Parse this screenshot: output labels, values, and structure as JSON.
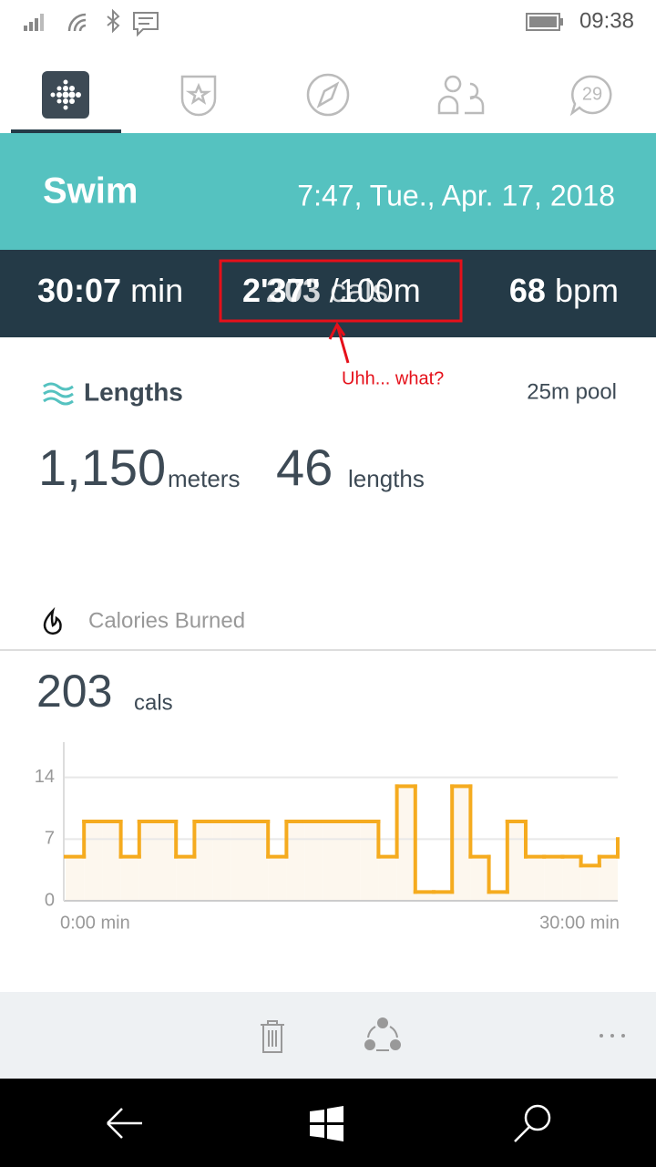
{
  "status_bar": {
    "time": "09:38"
  },
  "tabs": {
    "messages_badge": "29"
  },
  "header": {
    "title": "Swim",
    "datetime": "7:47, Tue., Apr. 17, 2018"
  },
  "stats": {
    "duration": {
      "value": "30:07",
      "unit": "min"
    },
    "pace": {
      "value": "2'37\"",
      "unit": "/100m"
    },
    "pace_overlap": {
      "value": "203",
      "unit": "cals"
    },
    "heart_rate": {
      "value": "68",
      "unit": "bpm"
    }
  },
  "annotation": "Uhh... what?",
  "lengths": {
    "title": "Lengths",
    "pool": "25m pool",
    "distance": {
      "value": "1,150",
      "unit": "meters"
    },
    "count": {
      "value": "46",
      "unit": "lengths"
    }
  },
  "calories": {
    "title": "Calories Burned",
    "total": {
      "value": "203",
      "unit": "cals"
    }
  },
  "chart_data": {
    "type": "line",
    "step": "post",
    "x": [
      0,
      1,
      2,
      3,
      4,
      5,
      6,
      7,
      8,
      9,
      10,
      11,
      12,
      13,
      14,
      15,
      16,
      17,
      18,
      19,
      20,
      21,
      22,
      23,
      24,
      25,
      26,
      27,
      28,
      29,
      30
    ],
    "values": [
      5,
      9,
      9,
      5,
      9,
      9,
      5,
      9,
      9,
      9,
      9,
      5,
      9,
      9,
      9,
      9,
      9,
      5,
      13,
      1,
      1,
      13,
      5,
      1,
      9,
      5,
      5,
      5,
      4,
      5,
      7
    ],
    "color": "#f5ab1f",
    "fill": "#fdf7ee",
    "xlim": [
      0,
      30
    ],
    "xticks": [
      {
        "value": 0,
        "label": "0:00 min"
      },
      {
        "value": 30,
        "label": "30:00 min"
      }
    ],
    "ylim": [
      0,
      18
    ],
    "yticks": [
      0,
      7,
      14
    ],
    "grid": true
  }
}
